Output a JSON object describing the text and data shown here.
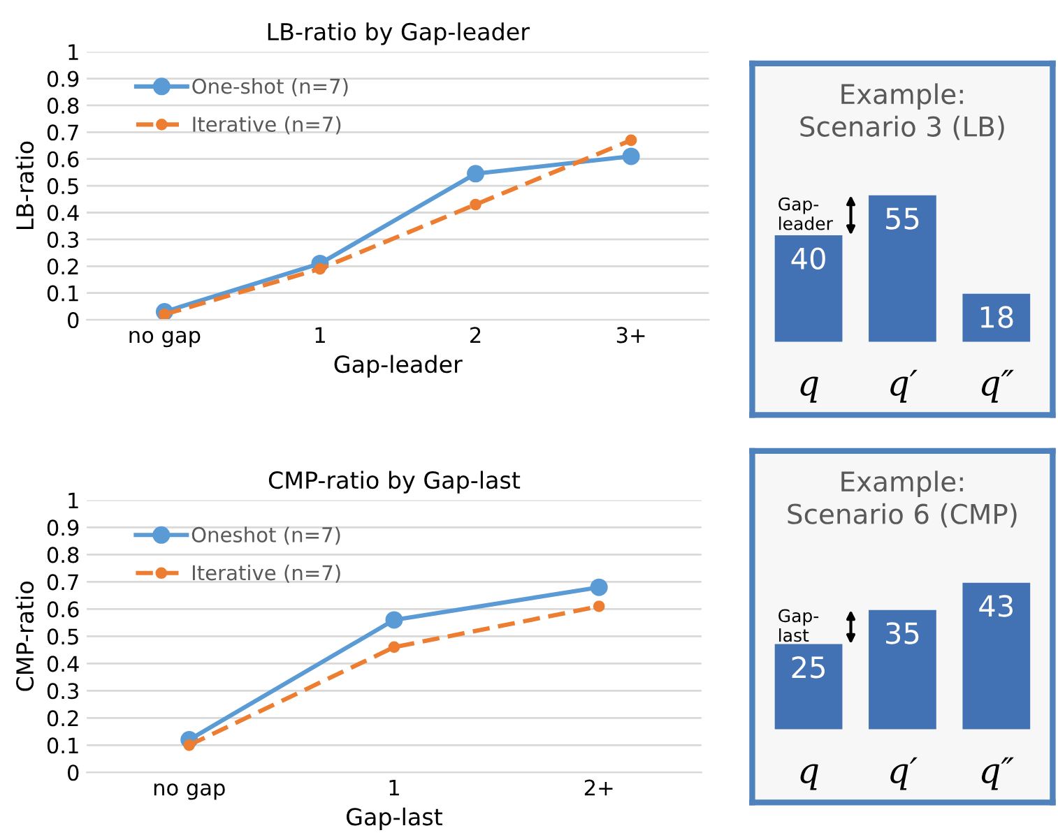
{
  "chart_data": [
    {
      "type": "line",
      "title": "LB-ratio by Gap-leader",
      "xlabel": "Gap-leader",
      "ylabel": "LB-ratio",
      "categories": [
        "no gap",
        "1",
        "2",
        "3+"
      ],
      "ylim": [
        0,
        1
      ],
      "yticks": [
        0,
        0.1,
        0.2,
        0.3,
        0.4,
        0.5,
        0.6,
        0.7,
        0.8,
        0.9,
        1
      ],
      "grid": "y",
      "legend": "top left",
      "marker": "circle",
      "series": [
        {
          "name": "One-shot (n=7)",
          "color": "#5b9bd5",
          "line_style": "solid",
          "values": [
            0.03,
            0.21,
            0.545,
            0.61
          ]
        },
        {
          "name": "Iterative (n=7)",
          "color": "#ed7d31",
          "line_style": "dashed",
          "values": [
            0.02,
            0.19,
            0.43,
            0.67
          ]
        }
      ]
    },
    {
      "type": "bar",
      "title": "Example:\nScenario 3 (LB)",
      "categories": [
        "q",
        "q′",
        "q″"
      ],
      "values": [
        40,
        55,
        18
      ],
      "color": "#4372b4",
      "data_labels": true,
      "annotations": [
        "Gap-\nleader"
      ]
    },
    {
      "type": "line",
      "title": "CMP-ratio by Gap-last",
      "xlabel": "Gap-last",
      "ylabel": "CMP-ratio",
      "categories": [
        "no gap",
        "1",
        "2+"
      ],
      "ylim": [
        0,
        1
      ],
      "yticks": [
        0,
        0.1,
        0.2,
        0.3,
        0.4,
        0.5,
        0.6,
        0.7,
        0.8,
        0.9,
        1
      ],
      "grid": "y",
      "legend": "top left",
      "marker": "circle",
      "series": [
        {
          "name": "Oneshot (n=7)",
          "color": "#5b9bd5",
          "line_style": "solid",
          "values": [
            0.12,
            0.56,
            0.68
          ]
        },
        {
          "name": "Iterative (n=7)",
          "color": "#ed7d31",
          "line_style": "dashed",
          "values": [
            0.1,
            0.46,
            0.61
          ]
        }
      ]
    },
    {
      "type": "bar",
      "title": "Example:\nScenario 6 (CMP)",
      "categories": [
        "q",
        "q′",
        "q″"
      ],
      "values": [
        25,
        35,
        43
      ],
      "color": "#4372b4",
      "data_labels": true,
      "annotations": [
        "Gap-\nlast"
      ]
    }
  ]
}
